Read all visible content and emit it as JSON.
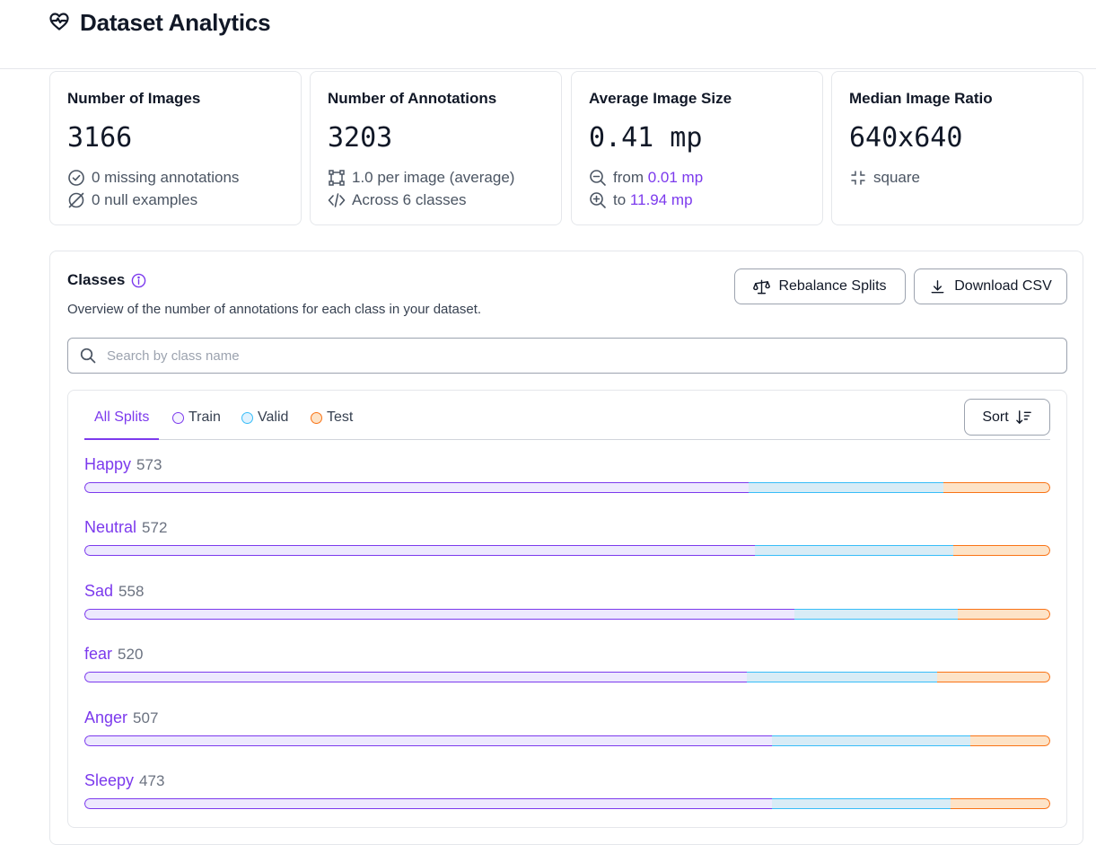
{
  "header": {
    "title": "Dataset Analytics",
    "logo_icon": "heart-pulse-icon"
  },
  "cards": {
    "images": {
      "title": "Number of Images",
      "value": "3166",
      "line1": "0 missing annotations",
      "line2": "0 null examples"
    },
    "annotations": {
      "title": "Number of Annotations",
      "value": "3203",
      "line1": "1.0 per image (average)",
      "line2": "Across 6 classes"
    },
    "size": {
      "title": "Average Image Size",
      "value": "0.41 mp",
      "line1_prefix": "from",
      "line1_value": "0.01 mp",
      "line2_prefix": "to",
      "line2_value": "11.94 mp"
    },
    "ratio": {
      "title": "Median Image Ratio",
      "value": "640x640",
      "line1": "square"
    }
  },
  "classes": {
    "title": "Classes",
    "description": "Overview of the number of annotations for each class in your dataset.",
    "rebalance_label": "Rebalance Splits",
    "download_label": "Download CSV",
    "search_placeholder": "Search by class name",
    "tabs": {
      "all": "All Splits",
      "train": "Train",
      "valid": "Valid",
      "test": "Test"
    },
    "sort_label": "Sort",
    "colors": {
      "accent": "#7c3aed",
      "train": "#7c3aed",
      "valid": "#38bdf8",
      "test": "#f97316"
    },
    "items": [
      {
        "name": "Happy",
        "count": "573",
        "train": 0.688,
        "valid": 0.201,
        "test": 0.111
      },
      {
        "name": "Neutral",
        "count": "572",
        "train": 0.694,
        "valid": 0.206,
        "test": 0.1
      },
      {
        "name": "Sad",
        "count": "558",
        "train": 0.735,
        "valid": 0.169,
        "test": 0.096
      },
      {
        "name": "fear",
        "count": "520",
        "train": 0.686,
        "valid": 0.197,
        "test": 0.117
      },
      {
        "name": "Anger",
        "count": "507",
        "train": 0.712,
        "valid": 0.205,
        "test": 0.083
      },
      {
        "name": "Sleepy",
        "count": "473",
        "train": 0.712,
        "valid": 0.185,
        "test": 0.103
      }
    ]
  }
}
